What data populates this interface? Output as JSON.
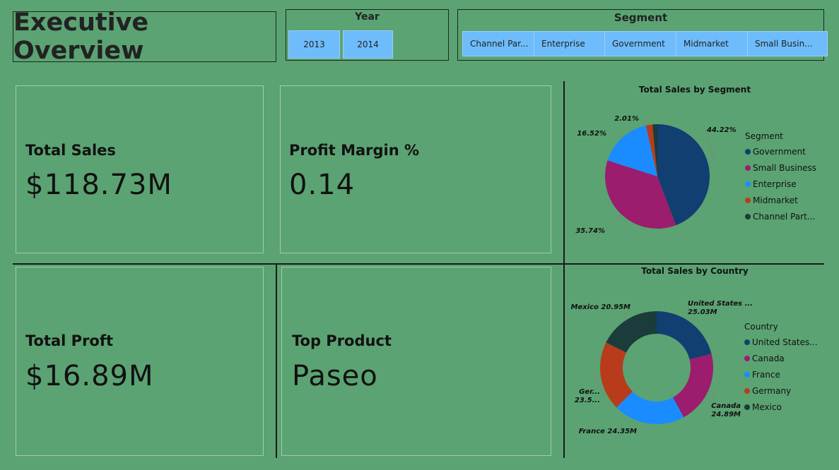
{
  "header": {
    "title": "Executive Overview"
  },
  "year_slicer": {
    "title": "Year",
    "options": [
      "2013",
      "2014"
    ]
  },
  "segment_slicer": {
    "title": "Segment",
    "options": [
      "Channel Par...",
      "Enterprise",
      "Government",
      "Midmarket",
      "Small Busin..."
    ]
  },
  "kpis": {
    "total_sales": {
      "label": "Total Sales",
      "value": "$118.73M"
    },
    "profit_margin": {
      "label": "Profit Margin %",
      "value": "0.14"
    },
    "total_profit": {
      "label": "Total Proft",
      "value": "$16.89M"
    },
    "top_product": {
      "label": "Top Product",
      "value": "Paseo"
    }
  },
  "colors": {
    "background": "#5ba373",
    "slicer_chip": "#6ebcfc",
    "government": "#113f72",
    "small_business": "#9c1c6e",
    "enterprise": "#1a8cff",
    "midmarket": "#b83c1b",
    "channel_partners": "#1a3c3b"
  },
  "chart_data": [
    {
      "type": "pie",
      "title": "Total Sales by Segment",
      "legend_title": "Segment",
      "legend_position": "right",
      "series": [
        {
          "name": "Government",
          "legend_label": "Government",
          "value": 44.22,
          "data_label": "44.22%",
          "color": "#113f72"
        },
        {
          "name": "Small Business",
          "legend_label": "Small Business",
          "value": 35.74,
          "data_label": "35.74%",
          "color": "#9c1c6e"
        },
        {
          "name": "Enterprise",
          "legend_label": "Enterprise",
          "value": 16.52,
          "data_label": "16.52%",
          "color": "#1a8cff"
        },
        {
          "name": "Midmarket",
          "legend_label": "Midmarket",
          "value": 2.01,
          "data_label": "2.01%",
          "color": "#b83c1b"
        },
        {
          "name": "Channel Partners",
          "legend_label": "Channel Part...",
          "value": 1.51,
          "data_label": "",
          "color": "#1a3c3b"
        }
      ]
    },
    {
      "type": "donut",
      "title": "Total Sales by Country",
      "legend_title": "Country",
      "legend_position": "right",
      "series": [
        {
          "name": "United States",
          "legend_label": "United States...",
          "value": 25.03,
          "data_label": [
            "United States ...",
            "25.03M"
          ],
          "color": "#113f72"
        },
        {
          "name": "Canada",
          "legend_label": "Canada",
          "value": 24.89,
          "data_label": [
            "Canada",
            "24.89M"
          ],
          "color": "#9c1c6e"
        },
        {
          "name": "France",
          "legend_label": "France",
          "value": 24.35,
          "data_label": [
            "France 24.35M"
          ],
          "color": "#1a8cff"
        },
        {
          "name": "Germany",
          "legend_label": "Germany",
          "value": 23.5,
          "data_label": [
            "Ger...",
            "23.5..."
          ],
          "color": "#b83c1b"
        },
        {
          "name": "Mexico",
          "legend_label": "Mexico",
          "value": 20.95,
          "data_label": [
            "Mexico 20.95M"
          ],
          "color": "#1a3c3b"
        }
      ]
    }
  ]
}
